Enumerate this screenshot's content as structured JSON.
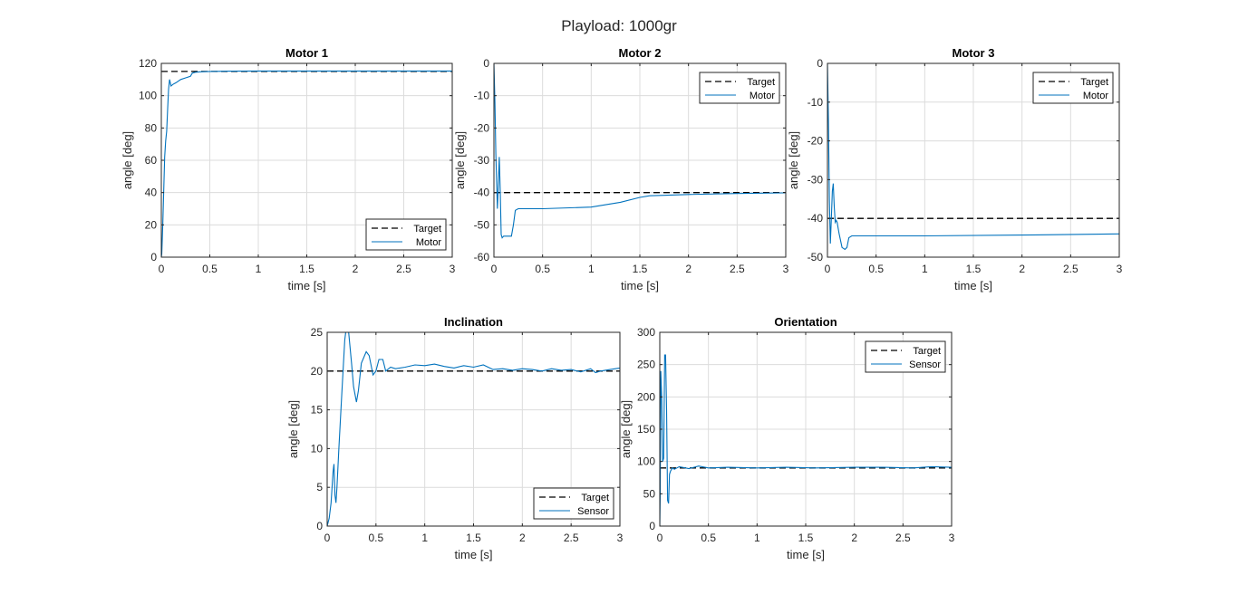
{
  "figure": {
    "title": "Playload: 1000gr"
  },
  "colors": {
    "target": "#000000",
    "measured": "#0072BD",
    "grid": "#dcdcdc",
    "axis": "#262626"
  },
  "chart_data": [
    {
      "type": "line",
      "title": "Motor 1",
      "xlabel": "time [s]",
      "ylabel": "angle [deg]",
      "xlim": [
        0,
        3
      ],
      "ylim": [
        0,
        120
      ],
      "xticks": [
        0,
        0.5,
        1,
        1.5,
        2,
        2.5,
        3
      ],
      "xtick_labels": [
        "0",
        "0.5",
        "1",
        "1.5",
        "2",
        "2.5",
        "3"
      ],
      "yticks": [
        0,
        20,
        40,
        60,
        80,
        100,
        120
      ],
      "ytick_labels": [
        "0",
        "20",
        "40",
        "60",
        "80",
        "100",
        "120"
      ],
      "grid": true,
      "legend": "bottom-right",
      "series": [
        {
          "name": "Target",
          "style": "dashed",
          "x": [
            0,
            3
          ],
          "y": [
            115,
            115
          ]
        },
        {
          "name": "Motor",
          "style": "solid",
          "x": [
            0,
            0.005,
            0.015,
            0.025,
            0.035,
            0.045,
            0.055,
            0.065,
            0.075,
            0.085,
            0.1,
            0.12,
            0.15,
            0.2,
            0.25,
            0.3,
            0.32,
            0.35,
            0.4,
            0.5,
            0.7,
            1.0,
            1.5,
            2.0,
            2.5,
            3.0
          ],
          "y": [
            0,
            2,
            20,
            42,
            62,
            72,
            78,
            92,
            104,
            110,
            106,
            107,
            108,
            110,
            111,
            112,
            114,
            114.5,
            114.8,
            115,
            115.2,
            115.3,
            115.3,
            115.3,
            115.3,
            115.3
          ]
        }
      ]
    },
    {
      "type": "line",
      "title": "Motor 2",
      "xlabel": "time [s]",
      "ylabel": "angle [deg]",
      "xlim": [
        0,
        3
      ],
      "ylim": [
        -60,
        0
      ],
      "xticks": [
        0,
        0.5,
        1,
        1.5,
        2,
        2.5,
        3
      ],
      "xtick_labels": [
        "0",
        "0.5",
        "1",
        "1.5",
        "2",
        "2.5",
        "3"
      ],
      "yticks": [
        -60,
        -50,
        -40,
        -30,
        -20,
        -10,
        0
      ],
      "ytick_labels": [
        "-60",
        "-50",
        "-40",
        "-30",
        "-20",
        "-10",
        "0"
      ],
      "grid": true,
      "legend": "top-right",
      "series": [
        {
          "name": "Target",
          "style": "dashed",
          "x": [
            0,
            3
          ],
          "y": [
            -40,
            -40
          ]
        },
        {
          "name": "Motor",
          "style": "solid",
          "x": [
            0,
            0.01,
            0.02,
            0.035,
            0.045,
            0.055,
            0.065,
            0.075,
            0.085,
            0.1,
            0.13,
            0.18,
            0.2,
            0.22,
            0.25,
            0.5,
            1.0,
            1.3,
            1.5,
            1.6,
            2.0,
            2.5,
            3.0
          ],
          "y": [
            0,
            -12,
            -28,
            -45,
            -38,
            -29,
            -40,
            -53,
            -54,
            -53.5,
            -53.5,
            -53.5,
            -50,
            -45.5,
            -45,
            -45,
            -44.5,
            -43,
            -41.5,
            -41,
            -40.6,
            -40.3,
            -40.1
          ]
        }
      ]
    },
    {
      "type": "line",
      "title": "Motor 3",
      "xlabel": "time [s]",
      "ylabel": "angle [deg]",
      "xlim": [
        0,
        3
      ],
      "ylim": [
        -50,
        0
      ],
      "xticks": [
        0,
        0.5,
        1,
        1.5,
        2,
        2.5,
        3
      ],
      "xtick_labels": [
        "0",
        "0.5",
        "1",
        "1.5",
        "2",
        "2.5",
        "3"
      ],
      "yticks": [
        -50,
        -40,
        -30,
        -20,
        -10,
        0
      ],
      "ytick_labels": [
        "-50",
        "-40",
        "-30",
        "-20",
        "-10",
        "0"
      ],
      "grid": true,
      "legend": "top-right",
      "series": [
        {
          "name": "Target",
          "style": "dashed",
          "x": [
            0,
            3
          ],
          "y": [
            -40,
            -40
          ]
        },
        {
          "name": "Motor",
          "style": "solid",
          "x": [
            0,
            0.01,
            0.02,
            0.03,
            0.04,
            0.05,
            0.06,
            0.07,
            0.08,
            0.09,
            0.1,
            0.12,
            0.15,
            0.18,
            0.2,
            0.22,
            0.25,
            0.5,
            1.0,
            2.0,
            3.0
          ],
          "y": [
            0,
            -15,
            -35,
            -46.5,
            -40,
            -33,
            -31,
            -37,
            -41,
            -40.5,
            -41,
            -44,
            -47.5,
            -48,
            -47.5,
            -45,
            -44.5,
            -44.5,
            -44.5,
            -44.3,
            -44
          ]
        }
      ]
    },
    {
      "type": "line",
      "title": "Inclination",
      "xlabel": "time [s]",
      "ylabel": "angle [deg]",
      "xlim": [
        0,
        3
      ],
      "ylim": [
        0,
        25
      ],
      "xticks": [
        0,
        0.5,
        1,
        1.5,
        2,
        2.5,
        3
      ],
      "xtick_labels": [
        "0",
        "0.5",
        "1",
        "1.5",
        "2",
        "2.5",
        "3"
      ],
      "yticks": [
        0,
        5,
        10,
        15,
        20,
        25
      ],
      "ytick_labels": [
        "0",
        "5",
        "10",
        "15",
        "20",
        "25"
      ],
      "grid": true,
      "legend": "bottom-right",
      "series": [
        {
          "name": "Target",
          "style": "dashed",
          "x": [
            0,
            3
          ],
          "y": [
            20,
            20
          ]
        },
        {
          "name": "Sensor",
          "style": "solid",
          "x": [
            0,
            0.02,
            0.04,
            0.06,
            0.07,
            0.08,
            0.09,
            0.1,
            0.12,
            0.15,
            0.18,
            0.2,
            0.22,
            0.25,
            0.27,
            0.3,
            0.32,
            0.35,
            0.4,
            0.43,
            0.47,
            0.5,
            0.53,
            0.57,
            0.6,
            0.65,
            0.7,
            0.8,
            0.9,
            1.0,
            1.1,
            1.2,
            1.3,
            1.4,
            1.5,
            1.6,
            1.7,
            1.8,
            1.9,
            2.0,
            2.1,
            2.2,
            2.3,
            2.4,
            2.5,
            2.6,
            2.7,
            2.75,
            2.8,
            2.9,
            3.0
          ],
          "y": [
            0,
            1,
            3,
            7,
            8,
            4,
            3,
            5,
            10,
            17,
            24,
            26,
            25,
            21,
            18,
            16,
            17.5,
            21,
            22.5,
            22,
            19.5,
            20,
            21.5,
            21.5,
            20,
            20.5,
            20.3,
            20.5,
            20.8,
            20.7,
            20.9,
            20.6,
            20.4,
            20.7,
            20.5,
            20.8,
            20.2,
            20.3,
            20.1,
            20.3,
            20.2,
            20,
            20.3,
            20.1,
            20.2,
            19.9,
            20.3,
            19.8,
            20,
            20.2,
            20.4
          ]
        }
      ]
    },
    {
      "type": "line",
      "title": "Orientation",
      "xlabel": "time [s]",
      "ylabel": "angle [deg]",
      "xlim": [
        0,
        3
      ],
      "ylim": [
        0,
        300
      ],
      "xticks": [
        0,
        0.5,
        1,
        1.5,
        2,
        2.5,
        3
      ],
      "xtick_labels": [
        "0",
        "0.5",
        "1",
        "1.5",
        "2",
        "2.5",
        "3"
      ],
      "yticks": [
        0,
        50,
        100,
        150,
        200,
        250,
        300
      ],
      "ytick_labels": [
        "0",
        "50",
        "100",
        "150",
        "200",
        "250",
        "300"
      ],
      "grid": true,
      "legend": "top-right",
      "series": [
        {
          "name": "Target",
          "style": "dashed",
          "x": [
            0,
            3
          ],
          "y": [
            90,
            90
          ]
        },
        {
          "name": "Sensor",
          "style": "solid",
          "x": [
            0,
            0.005,
            0.01,
            0.02,
            0.03,
            0.04,
            0.05,
            0.06,
            0.07,
            0.08,
            0.09,
            0.1,
            0.11,
            0.13,
            0.15,
            0.2,
            0.3,
            0.4,
            0.5,
            0.7,
            1.0,
            1.3,
            1.6,
            2.0,
            2.3,
            2.6,
            2.8,
            3.0
          ],
          "y": [
            0,
            50,
            240,
            200,
            100,
            105,
            265,
            265,
            180,
            40,
            35,
            80,
            85,
            90,
            88,
            92,
            89,
            93,
            90,
            91,
            90,
            91,
            90,
            91,
            91,
            90,
            92,
            91
          ]
        }
      ]
    }
  ]
}
